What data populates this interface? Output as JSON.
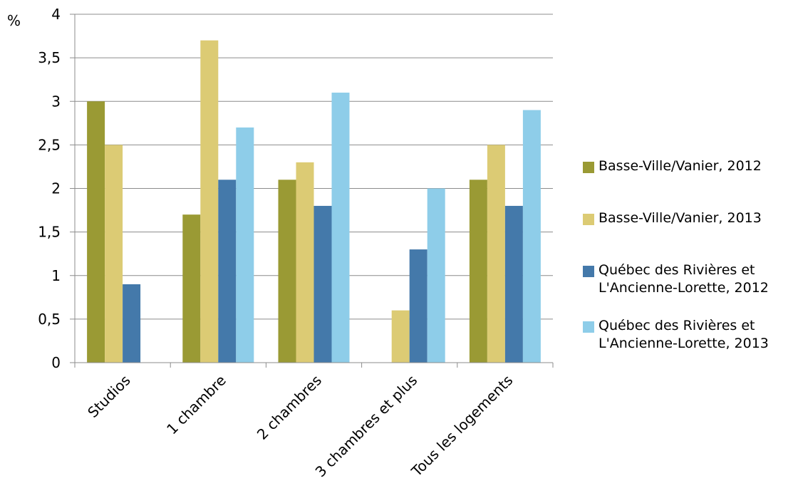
{
  "chart_data": {
    "type": "bar",
    "unit_label": "%",
    "categories": [
      "Studios",
      "1 chambre",
      "2 chambres",
      "3 chambres et plus",
      "Tous les logements"
    ],
    "series": [
      {
        "name": "Basse-Ville/Vanier, 2012",
        "color": "#9a9a34",
        "values": [
          3.0,
          1.7,
          2.1,
          null,
          2.1
        ]
      },
      {
        "name": "Basse-Ville/Vanier, 2013",
        "color": "#dccb74",
        "values": [
          2.5,
          3.7,
          2.3,
          0.6,
          2.5
        ]
      },
      {
        "name": "Québec des Rivières et L'Ancienne-Lorette, 2012",
        "color": "#4479aa",
        "values": [
          0.9,
          2.1,
          1.8,
          1.3,
          1.8
        ]
      },
      {
        "name": "Québec des Rivières et L'Ancienne-Lorette, 2013",
        "color": "#8ecde9",
        "values": [
          null,
          2.7,
          3.1,
          2.0,
          2.9
        ]
      }
    ],
    "y_ticks": [
      "0",
      "0,5",
      "1",
      "1,5",
      "2",
      "2,5",
      "3",
      "3,5",
      "4"
    ],
    "ylim": [
      0,
      4
    ],
    "grid": true,
    "legend_position": "right"
  }
}
